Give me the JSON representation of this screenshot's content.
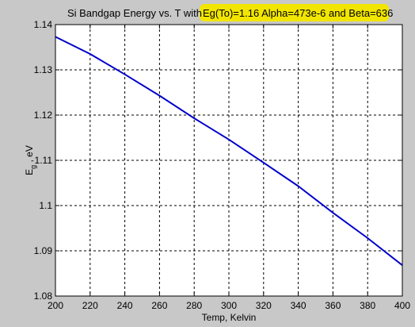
{
  "chart_data": {
    "type": "line",
    "title_plain": "Si Bandgap Energy vs. T with ",
    "title_highlighted": "Eg(To)=1.16 Alpha=473e-6 and Beta=636",
    "xlabel": "Temp, Kelvin",
    "ylabel_main": "E",
    "ylabel_sub": "g",
    "ylabel_rest": " , eV",
    "xlim": [
      200,
      400
    ],
    "ylim": [
      1.08,
      1.14
    ],
    "x_ticks": [
      "200",
      "220",
      "240",
      "260",
      "280",
      "300",
      "320",
      "340",
      "360",
      "380",
      "400"
    ],
    "y_ticks": [
      "1.08",
      "1.09",
      "1.1",
      "1.11",
      "1.12",
      "1.13",
      "1.14"
    ],
    "grid": true,
    "series": [
      {
        "color": "#0000cc",
        "x": [
          200,
          220,
          240,
          260,
          280,
          300,
          320,
          340,
          360,
          380,
          400
        ],
        "y": [
          1.1373,
          1.1335,
          1.129,
          1.1243,
          1.1193,
          1.1146,
          1.1095,
          1.1043,
          1.0984,
          1.0928,
          1.0868
        ]
      }
    ],
    "colors": {
      "figure_bg": "#c8c8c8",
      "axes_bg": "#ffffff",
      "highlight": "#f2e600",
      "line": "#0000cc"
    }
  }
}
